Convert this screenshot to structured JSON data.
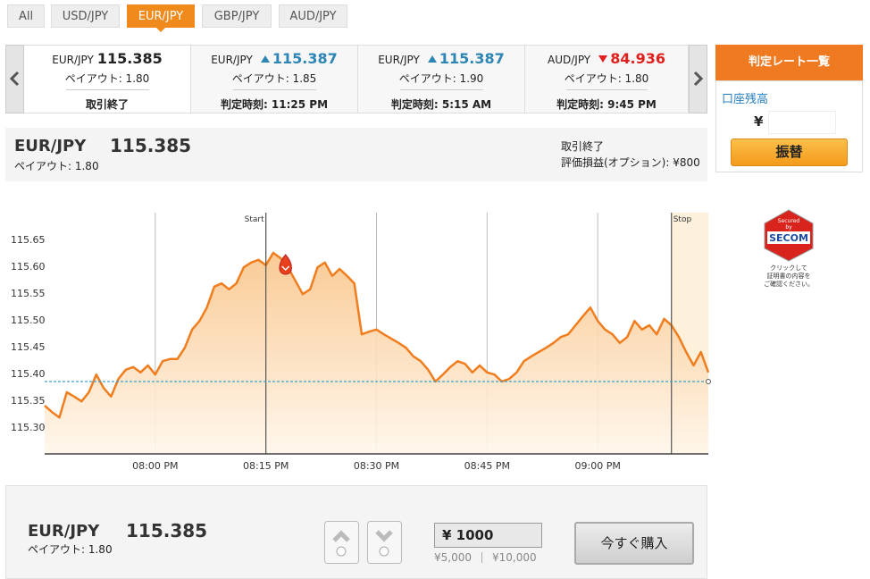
{
  "tabs": [
    "All",
    "USD/JPY",
    "EUR/JPY",
    "GBP/JPY",
    "AUD/JPY"
  ],
  "cards": [
    {
      "pair": "EUR/JPY",
      "rate": "115.385",
      "payout": "ペイアウト: 1.80",
      "status": "取引終了"
    },
    {
      "pair": "EUR/JPY",
      "rate": "115.387",
      "payout": "ペイアウト: 1.85",
      "status": "判定時刻: 11:25 PM"
    },
    {
      "pair": "EUR/JPY",
      "rate": "115.387",
      "payout": "ペイアウト: 1.90",
      "status": "判定時刻: 5:15 AM"
    },
    {
      "pair": "AUD/JPY",
      "rate": "84.936",
      "payout": "ペイアウト: 1.80",
      "status": "判定時刻: 9:45 PM"
    }
  ],
  "rate_list_button": "判定レート一覧",
  "balance": {
    "label": "口座残高",
    "currency": "¥"
  },
  "transfer_button": "振替",
  "summary": {
    "pair": "EUR/JPY",
    "rate": "115.385",
    "payout": "ペイアウト: 1.80",
    "status": "取引終了",
    "pnl": "評価損益(オプション): ¥800"
  },
  "security_badge": {
    "line1": "Secured",
    "line2": "by",
    "brand": "SECOM",
    "note": [
      "クリックして",
      "証明書の内容を",
      "ご確認ください。"
    ]
  },
  "chart_data": {
    "type": "line",
    "color": "#f07d1e",
    "x": [
      "07:45 PM",
      "07:46 PM",
      "07:47 PM",
      "07:48 PM",
      "07:49 PM",
      "07:50 PM",
      "07:51 PM",
      "07:52 PM",
      "07:53 PM",
      "07:54 PM",
      "07:55 PM",
      "07:56 PM",
      "07:57 PM",
      "07:58 PM",
      "07:59 PM",
      "08:00 PM",
      "08:01 PM",
      "08:02 PM",
      "08:03 PM",
      "08:04 PM",
      "08:05 PM",
      "08:06 PM",
      "08:07 PM",
      "08:08 PM",
      "08:09 PM",
      "08:10 PM",
      "08:11 PM",
      "08:12 PM",
      "08:13 PM",
      "08:14 PM",
      "08:15 PM",
      "08:16 PM",
      "08:17 PM",
      "08:18 PM",
      "08:19 PM",
      "08:20 PM",
      "08:21 PM",
      "08:22 PM",
      "08:23 PM",
      "08:24 PM",
      "08:25 PM",
      "08:26 PM",
      "08:27 PM",
      "08:28 PM",
      "08:29 PM",
      "08:30 PM",
      "08:31 PM",
      "08:32 PM",
      "08:33 PM",
      "08:34 PM",
      "08:35 PM",
      "08:36 PM",
      "08:37 PM",
      "08:38 PM",
      "08:39 PM",
      "08:40 PM",
      "08:41 PM",
      "08:42 PM",
      "08:43 PM",
      "08:44 PM",
      "08:45 PM",
      "08:46 PM",
      "08:47 PM",
      "08:48 PM",
      "08:49 PM",
      "08:50 PM",
      "08:51 PM",
      "08:52 PM",
      "08:53 PM",
      "08:54 PM",
      "08:55 PM",
      "08:56 PM",
      "08:57 PM",
      "08:58 PM",
      "08:59 PM",
      "09:00 PM",
      "09:01 PM",
      "09:02 PM",
      "09:03 PM",
      "09:04 PM",
      "09:05 PM",
      "09:06 PM",
      "09:07 PM",
      "09:08 PM",
      "09:09 PM",
      "09:10 PM",
      "09:11 PM",
      "09:12 PM",
      "09:13 PM",
      "09:14 PM",
      "09:15 PM"
    ],
    "values": [
      115.34,
      115.328,
      115.318,
      115.365,
      115.357,
      115.348,
      115.365,
      115.398,
      115.373,
      115.357,
      115.39,
      115.407,
      115.412,
      115.402,
      115.415,
      115.398,
      115.423,
      115.427,
      115.427,
      115.448,
      115.482,
      115.498,
      115.523,
      115.562,
      115.568,
      115.557,
      115.568,
      115.598,
      115.607,
      115.612,
      115.602,
      115.625,
      115.615,
      115.598,
      115.573,
      115.548,
      115.557,
      115.598,
      115.607,
      115.582,
      115.595,
      115.582,
      115.568,
      115.473,
      115.478,
      115.482,
      115.473,
      115.465,
      115.457,
      115.448,
      115.432,
      115.423,
      115.407,
      115.385,
      115.398,
      115.412,
      115.423,
      115.418,
      115.402,
      115.415,
      115.402,
      115.398,
      115.385,
      115.39,
      115.402,
      115.423,
      115.432,
      115.44,
      115.448,
      115.457,
      115.468,
      115.473,
      115.49,
      115.507,
      115.523,
      115.498,
      115.482,
      115.473,
      115.457,
      115.468,
      115.498,
      115.482,
      115.49,
      115.473,
      115.502,
      115.49,
      115.468,
      115.44,
      115.415,
      115.44,
      115.402
    ],
    "xlim": [
      "07:45 PM",
      "09:15 PM"
    ],
    "xticks": [
      "08:00 PM",
      "08:15 PM",
      "08:30 PM",
      "08:45 PM",
      "09:00 PM"
    ],
    "ylim": [
      115.25,
      115.7
    ],
    "yticks": [
      {
        "value": 115.3,
        "label": "115.30"
      },
      115.35,
      {
        "value": 115.4,
        "label": "115.40"
      },
      115.45,
      {
        "value": 115.5,
        "label": "115.50"
      },
      115.55,
      {
        "value": 115.6,
        "label": "115.60"
      },
      115.65
    ],
    "x_grid": true,
    "reference_line": 115.385,
    "reference_color": "#3a9fd0",
    "markers": [
      {
        "label": "Start",
        "x": "08:15 PM"
      },
      {
        "label": "Stop",
        "x": "09:10 PM"
      }
    ]
  },
  "order": {
    "pair": "EUR/JPY",
    "rate": "115.385",
    "payout": "ペイアウト: 1.80",
    "amount": "¥ 1000",
    "presets": [
      "¥5,000",
      "¥10,000"
    ],
    "buy_button": "今すぐ購入"
  }
}
